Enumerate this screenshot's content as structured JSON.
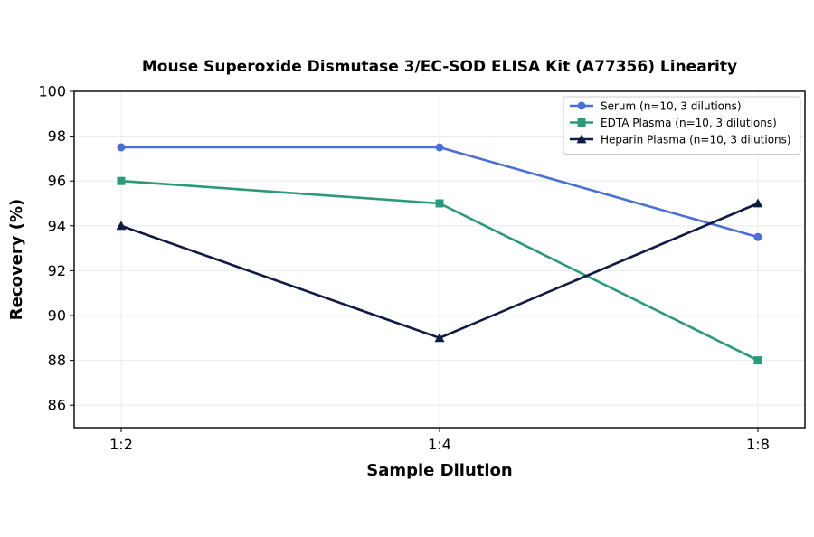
{
  "chart_data": {
    "type": "line",
    "title": "Mouse Superoxide Dismutase 3/EC-SOD ELISA Kit (A77356) Linearity",
    "xlabel": "Sample Dilution",
    "ylabel": "Recovery (%)",
    "categories": [
      "1:2",
      "1:4",
      "1:8"
    ],
    "ylim": [
      85,
      100
    ],
    "yticks": [
      86,
      88,
      90,
      92,
      94,
      96,
      98,
      100
    ],
    "grid": true,
    "legend_position": "top-right",
    "series": [
      {
        "name": "Serum (n=10, 3 dilutions)",
        "values": [
          97.5,
          97.5,
          93.5
        ],
        "color": "#4a6fd6",
        "marker": "circle"
      },
      {
        "name": "EDTA Plasma (n=10, 3 dilutions)",
        "values": [
          96,
          95,
          88
        ],
        "color": "#2a9a7a",
        "marker": "square"
      },
      {
        "name": "Heparin Plasma (n=10, 3 dilutions)",
        "values": [
          94,
          89,
          95
        ],
        "color": "#0f1a45",
        "marker": "triangle"
      }
    ]
  }
}
